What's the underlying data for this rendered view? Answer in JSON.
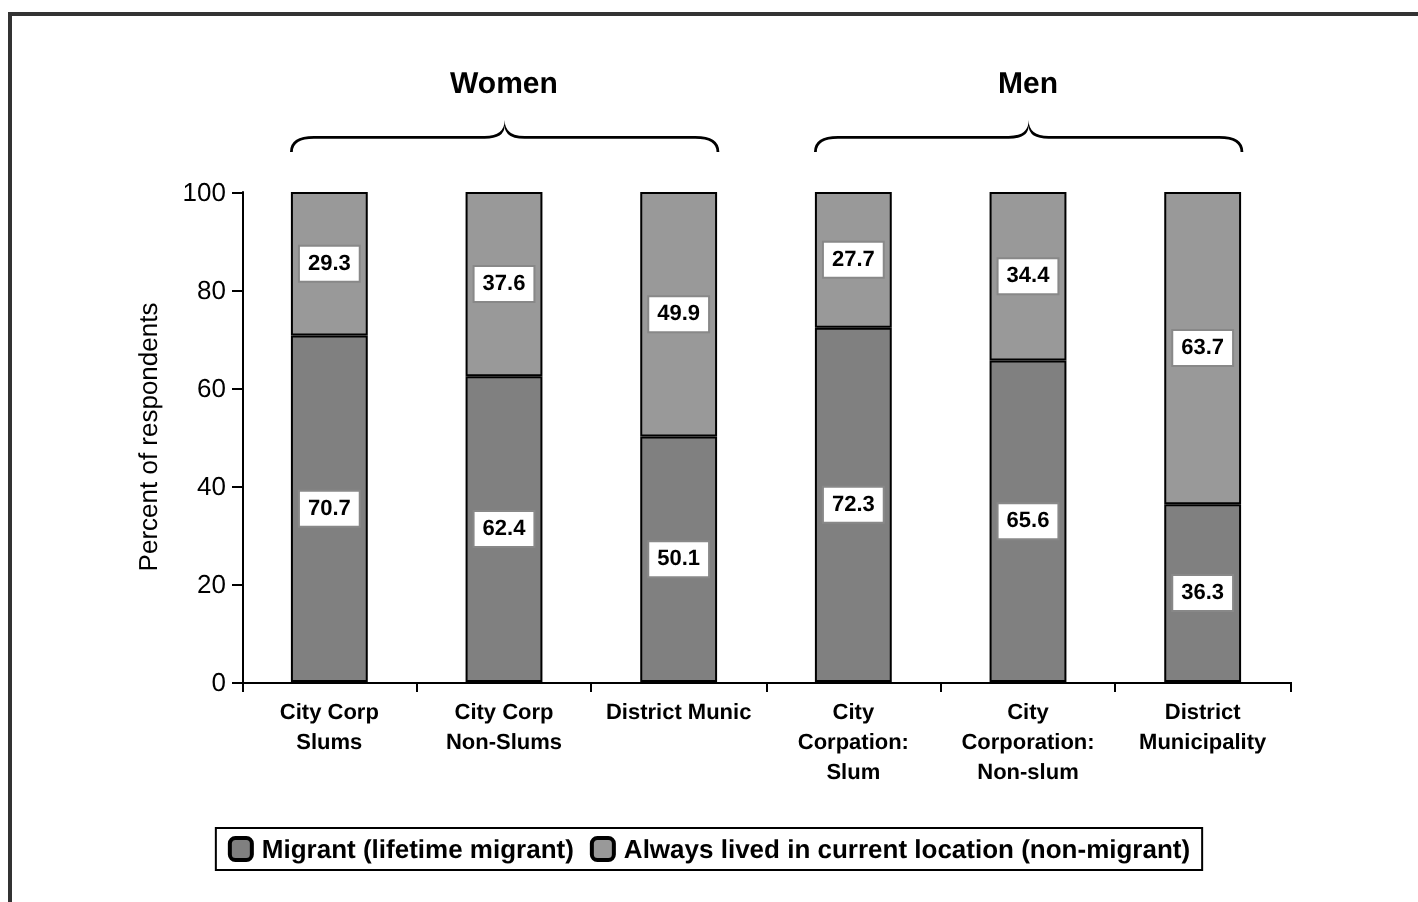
{
  "chart_data": {
    "type": "bar",
    "stacked": true,
    "ylabel": "Percent of respondents",
    "categories": [
      "City Corp\nSlums",
      "City Corp\nNon-Slums",
      "District Munic",
      "City\nCorpation:\nSlum",
      "City\nCorporation:\nNon-slum",
      "District\nMunicipality"
    ],
    "series": [
      {
        "name": "Migrant (lifetime migrant)",
        "color": "#808080",
        "values": [
          70.7,
          62.4,
          50.1,
          72.3,
          65.6,
          36.3
        ]
      },
      {
        "name": "Always lived in current location (non-migrant)",
        "color": "#999999",
        "values": [
          29.3,
          37.6,
          49.9,
          27.7,
          34.4,
          63.7
        ]
      }
    ],
    "ylim": [
      0,
      100
    ],
    "yticks": [
      0,
      20,
      40,
      60,
      80,
      100
    ],
    "grid": false,
    "legend": "bottom",
    "data_labels": true,
    "annotations": [
      "Women",
      "Men"
    ]
  }
}
